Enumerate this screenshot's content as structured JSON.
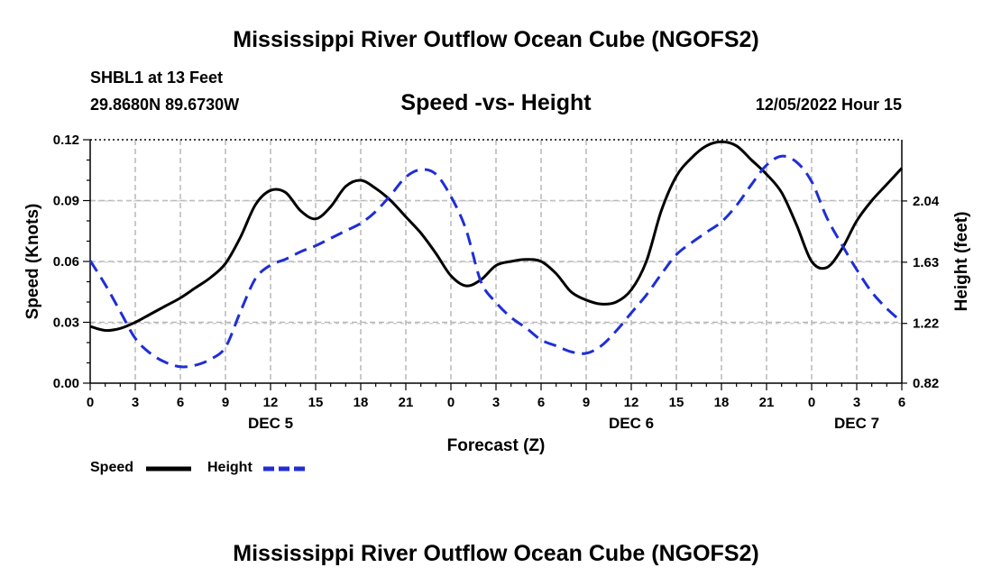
{
  "page": {
    "title": "Mississippi River Outflow Ocean Cube (NGOFS2)",
    "bottom_title": "Mississippi River Outflow Ocean Cube (NGOFS2)",
    "station_line": "SHBL1 at 13 Feet",
    "coords_line": "29.8680N  89.6730W",
    "subtitle": "Speed -vs- Height",
    "timestamp": "12/05/2022 Hour 15"
  },
  "legend": {
    "speed_label": "Speed",
    "height_label": "Height"
  },
  "chart_data": {
    "type": "line",
    "title": "Speed -vs- Height",
    "xlabel": "Forecast (Z)",
    "ylabel": "Speed (Knots)",
    "y2label": "Height (feet)",
    "x_range_hours": [
      0,
      54
    ],
    "ylim": [
      0,
      0.12
    ],
    "y2lim": [
      0.82,
      2.45
    ],
    "grid": true,
    "x_ticks": [
      {
        "hour": 0,
        "label": "0"
      },
      {
        "hour": 3,
        "label": "3"
      },
      {
        "hour": 6,
        "label": "6"
      },
      {
        "hour": 9,
        "label": "9"
      },
      {
        "hour": 12,
        "label": "12"
      },
      {
        "hour": 15,
        "label": "15"
      },
      {
        "hour": 18,
        "label": "18"
      },
      {
        "hour": 21,
        "label": "21"
      },
      {
        "hour": 24,
        "label": "0"
      },
      {
        "hour": 27,
        "label": "3"
      },
      {
        "hour": 30,
        "label": "6"
      },
      {
        "hour": 33,
        "label": "9"
      },
      {
        "hour": 36,
        "label": "12"
      },
      {
        "hour": 39,
        "label": "15"
      },
      {
        "hour": 42,
        "label": "18"
      },
      {
        "hour": 45,
        "label": "21"
      },
      {
        "hour": 48,
        "label": "0"
      },
      {
        "hour": 51,
        "label": "3"
      },
      {
        "hour": 54,
        "label": "6"
      }
    ],
    "day_labels": [
      {
        "hour": 12,
        "label": "DEC 5"
      },
      {
        "hour": 36,
        "label": "DEC 6"
      },
      {
        "hour": 51,
        "label": "DEC 7"
      }
    ],
    "y_ticks": [
      {
        "value": 0,
        "label": "0.00"
      },
      {
        "value": 0.03,
        "label": "0.03"
      },
      {
        "value": 0.06,
        "label": "0.06"
      },
      {
        "value": 0.09,
        "label": "0.09"
      },
      {
        "value": 0.12,
        "label": "0.12"
      }
    ],
    "y2_ticks": [
      {
        "value": 0.82,
        "label": "0.82"
      },
      {
        "value": 1.22,
        "label": "1.22"
      },
      {
        "value": 1.63,
        "label": "1.63"
      },
      {
        "value": 2.04,
        "label": "2.04"
      }
    ],
    "series": [
      {
        "name": "Speed",
        "axis": "left",
        "color": "#000000",
        "style": "solid",
        "points": [
          [
            0,
            0.028
          ],
          [
            1,
            0.026
          ],
          [
            2,
            0.027
          ],
          [
            3,
            0.03
          ],
          [
            4,
            0.034
          ],
          [
            5,
            0.038
          ],
          [
            6,
            0.042
          ],
          [
            7,
            0.047
          ],
          [
            8,
            0.052
          ],
          [
            9,
            0.059
          ],
          [
            10,
            0.072
          ],
          [
            11,
            0.088
          ],
          [
            12,
            0.095
          ],
          [
            13,
            0.094
          ],
          [
            14,
            0.085
          ],
          [
            15,
            0.081
          ],
          [
            16,
            0.087
          ],
          [
            17,
            0.097
          ],
          [
            18,
            0.1
          ],
          [
            19,
            0.096
          ],
          [
            20,
            0.09
          ],
          [
            21,
            0.082
          ],
          [
            22,
            0.074
          ],
          [
            23,
            0.064
          ],
          [
            24,
            0.053
          ],
          [
            25,
            0.048
          ],
          [
            26,
            0.051
          ],
          [
            27,
            0.058
          ],
          [
            28,
            0.06
          ],
          [
            29,
            0.061
          ],
          [
            30,
            0.06
          ],
          [
            31,
            0.054
          ],
          [
            32,
            0.045
          ],
          [
            33,
            0.041
          ],
          [
            34,
            0.039
          ],
          [
            35,
            0.04
          ],
          [
            36,
            0.046
          ],
          [
            37,
            0.06
          ],
          [
            38,
            0.085
          ],
          [
            39,
            0.102
          ],
          [
            40,
            0.111
          ],
          [
            41,
            0.117
          ],
          [
            42,
            0.119
          ],
          [
            43,
            0.117
          ],
          [
            44,
            0.11
          ],
          [
            45,
            0.103
          ],
          [
            46,
            0.094
          ],
          [
            47,
            0.078
          ],
          [
            48,
            0.06
          ],
          [
            49,
            0.057
          ],
          [
            50,
            0.066
          ],
          [
            51,
            0.08
          ],
          [
            52,
            0.09
          ],
          [
            53,
            0.098
          ],
          [
            54,
            0.106
          ]
        ]
      },
      {
        "name": "Height",
        "axis": "right",
        "color": "#1f2ed6",
        "style": "dashed",
        "points": [
          [
            0,
            1.64
          ],
          [
            1,
            1.48
          ],
          [
            2,
            1.3
          ],
          [
            3,
            1.12
          ],
          [
            4,
            1.02
          ],
          [
            5,
            0.96
          ],
          [
            6,
            0.93
          ],
          [
            7,
            0.94
          ],
          [
            8,
            0.98
          ],
          [
            9,
            1.06
          ],
          [
            10,
            1.3
          ],
          [
            11,
            1.52
          ],
          [
            12,
            1.61
          ],
          [
            13,
            1.65
          ],
          [
            14,
            1.7
          ],
          [
            15,
            1.74
          ],
          [
            16,
            1.79
          ],
          [
            17,
            1.84
          ],
          [
            18,
            1.89
          ],
          [
            19,
            1.97
          ],
          [
            20,
            2.08
          ],
          [
            21,
            2.2
          ],
          [
            22,
            2.25
          ],
          [
            23,
            2.22
          ],
          [
            24,
            2.07
          ],
          [
            25,
            1.85
          ],
          [
            26,
            1.5
          ],
          [
            27,
            1.36
          ],
          [
            28,
            1.26
          ],
          [
            29,
            1.19
          ],
          [
            30,
            1.11
          ],
          [
            31,
            1.07
          ],
          [
            32,
            1.03
          ],
          [
            33,
            1.02
          ],
          [
            34,
            1.07
          ],
          [
            35,
            1.17
          ],
          [
            36,
            1.29
          ],
          [
            37,
            1.41
          ],
          [
            38,
            1.55
          ],
          [
            39,
            1.68
          ],
          [
            40,
            1.76
          ],
          [
            41,
            1.83
          ],
          [
            42,
            1.9
          ],
          [
            43,
            2.01
          ],
          [
            44,
            2.15
          ],
          [
            45,
            2.28
          ],
          [
            46,
            2.34
          ],
          [
            47,
            2.3
          ],
          [
            48,
            2.17
          ],
          [
            49,
            1.93
          ],
          [
            50,
            1.75
          ],
          [
            51,
            1.58
          ],
          [
            52,
            1.43
          ],
          [
            53,
            1.32
          ],
          [
            54,
            1.23
          ]
        ]
      }
    ]
  }
}
